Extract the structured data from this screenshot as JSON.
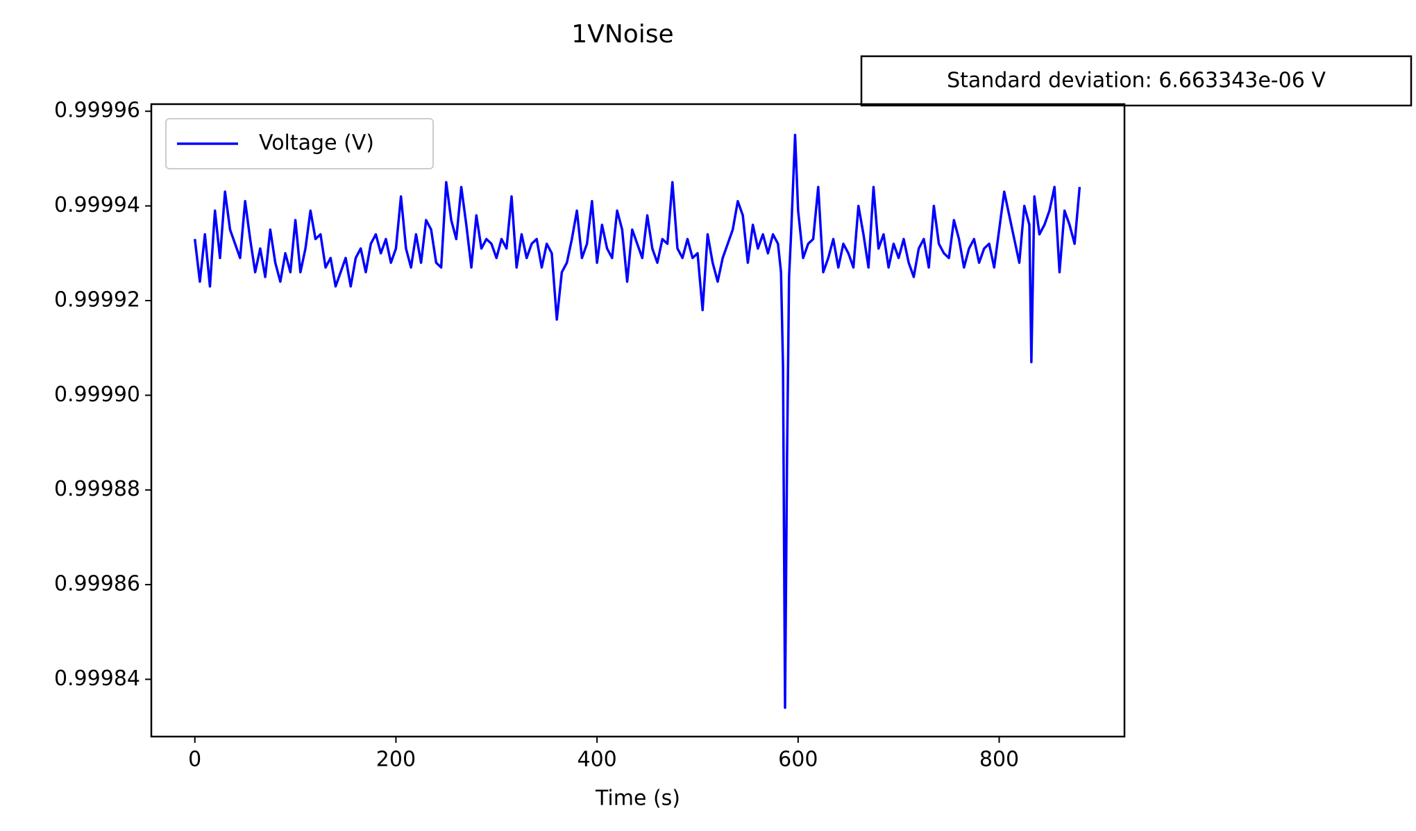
{
  "chart_data": {
    "type": "line",
    "title": "1VNoise",
    "annotation": "Standard deviation: 6.663343e-06 V",
    "x_label": "Time (s)",
    "x": [
      0,
      5,
      10,
      15,
      20,
      25,
      30,
      35,
      40,
      45,
      50,
      55,
      60,
      65,
      70,
      75,
      80,
      85,
      90,
      95,
      100,
      105,
      110,
      115,
      120,
      125,
      130,
      135,
      140,
      145,
      150,
      155,
      160,
      165,
      170,
      175,
      180,
      185,
      190,
      195,
      200,
      205,
      210,
      215,
      220,
      225,
      230,
      235,
      240,
      245,
      250,
      255,
      260,
      265,
      270,
      275,
      280,
      285,
      290,
      295,
      300,
      305,
      310,
      315,
      320,
      325,
      330,
      335,
      340,
      345,
      350,
      355,
      360,
      365,
      370,
      375,
      380,
      385,
      390,
      395,
      400,
      405,
      410,
      415,
      420,
      425,
      430,
      435,
      440,
      445,
      450,
      455,
      460,
      465,
      470,
      475,
      480,
      485,
      490,
      495,
      500,
      505,
      510,
      515,
      520,
      525,
      530,
      535,
      540,
      545,
      550,
      555,
      560,
      565,
      570,
      575,
      580,
      583,
      585,
      587,
      589,
      591,
      593,
      597,
      600,
      605,
      610,
      615,
      620,
      625,
      630,
      635,
      640,
      645,
      650,
      655,
      660,
      665,
      670,
      675,
      680,
      685,
      690,
      695,
      700,
      705,
      710,
      715,
      720,
      725,
      730,
      735,
      740,
      745,
      750,
      755,
      760,
      765,
      770,
      775,
      780,
      785,
      790,
      795,
      800,
      805,
      810,
      815,
      820,
      825,
      830,
      832,
      835,
      840,
      845,
      850,
      855,
      860,
      865,
      870,
      875,
      880
    ],
    "series": [
      {
        "name": "Voltage (V)",
        "color": "#0000ff",
        "values": [
          0.999933,
          0.999924,
          0.999934,
          0.999923,
          0.999939,
          0.999929,
          0.999943,
          0.999935,
          0.999932,
          0.999929,
          0.999941,
          0.999933,
          0.999926,
          0.999931,
          0.999925,
          0.999935,
          0.999928,
          0.999924,
          0.99993,
          0.999926,
          0.999937,
          0.999926,
          0.999931,
          0.999939,
          0.999933,
          0.999934,
          0.999927,
          0.999929,
          0.999923,
          0.999926,
          0.999929,
          0.999923,
          0.999929,
          0.999931,
          0.999926,
          0.999932,
          0.999934,
          0.99993,
          0.999933,
          0.999928,
          0.999931,
          0.999942,
          0.999931,
          0.999927,
          0.999934,
          0.999928,
          0.999937,
          0.999935,
          0.999928,
          0.999927,
          0.999945,
          0.999937,
          0.999933,
          0.999944,
          0.999936,
          0.999927,
          0.999938,
          0.999931,
          0.999933,
          0.999932,
          0.999929,
          0.999933,
          0.999931,
          0.999942,
          0.999927,
          0.999934,
          0.999929,
          0.999932,
          0.999933,
          0.999927,
          0.999932,
          0.99993,
          0.999916,
          0.999926,
          0.999928,
          0.999933,
          0.999939,
          0.999929,
          0.999932,
          0.999941,
          0.999928,
          0.999936,
          0.999931,
          0.999929,
          0.999939,
          0.999935,
          0.999924,
          0.999935,
          0.999932,
          0.999929,
          0.999938,
          0.999931,
          0.999928,
          0.999933,
          0.999932,
          0.999945,
          0.999931,
          0.999929,
          0.999933,
          0.999929,
          0.99993,
          0.999918,
          0.999934,
          0.999928,
          0.999924,
          0.999929,
          0.999932,
          0.999935,
          0.999941,
          0.999938,
          0.999928,
          0.999936,
          0.999931,
          0.999934,
          0.99993,
          0.999934,
          0.999932,
          0.999926,
          0.999906,
          0.999834,
          0.999887,
          0.999925,
          0.999934,
          0.999955,
          0.999939,
          0.999929,
          0.999932,
          0.999933,
          0.999944,
          0.999926,
          0.999929,
          0.999933,
          0.999927,
          0.999932,
          0.99993,
          0.999927,
          0.99994,
          0.999934,
          0.999927,
          0.999944,
          0.999931,
          0.999934,
          0.999927,
          0.999932,
          0.999929,
          0.999933,
          0.999928,
          0.999925,
          0.999931,
          0.999933,
          0.999927,
          0.99994,
          0.999932,
          0.99993,
          0.999929,
          0.999937,
          0.999933,
          0.999927,
          0.999931,
          0.999933,
          0.999928,
          0.999931,
          0.999932,
          0.999927,
          0.999935,
          0.999943,
          0.999938,
          0.999933,
          0.999928,
          0.99994,
          0.999936,
          0.999907,
          0.999942,
          0.999934,
          0.999936,
          0.999939,
          0.999944,
          0.999926,
          0.999939,
          0.999936,
          0.999932,
          0.999944
        ]
      }
    ],
    "xlim": [
      -43.3,
      924.6
    ],
    "ylim": [
      0.9998279,
      0.9999615
    ],
    "xticks": [
      0,
      200,
      400,
      600,
      800
    ],
    "yticks": [
      0.99984,
      0.99986,
      0.99988,
      {
        "value": 0.9999,
        "label": "0.99990"
      },
      0.99992,
      0.99994,
      0.99996
    ],
    "grid": false,
    "legend": "upper left"
  }
}
